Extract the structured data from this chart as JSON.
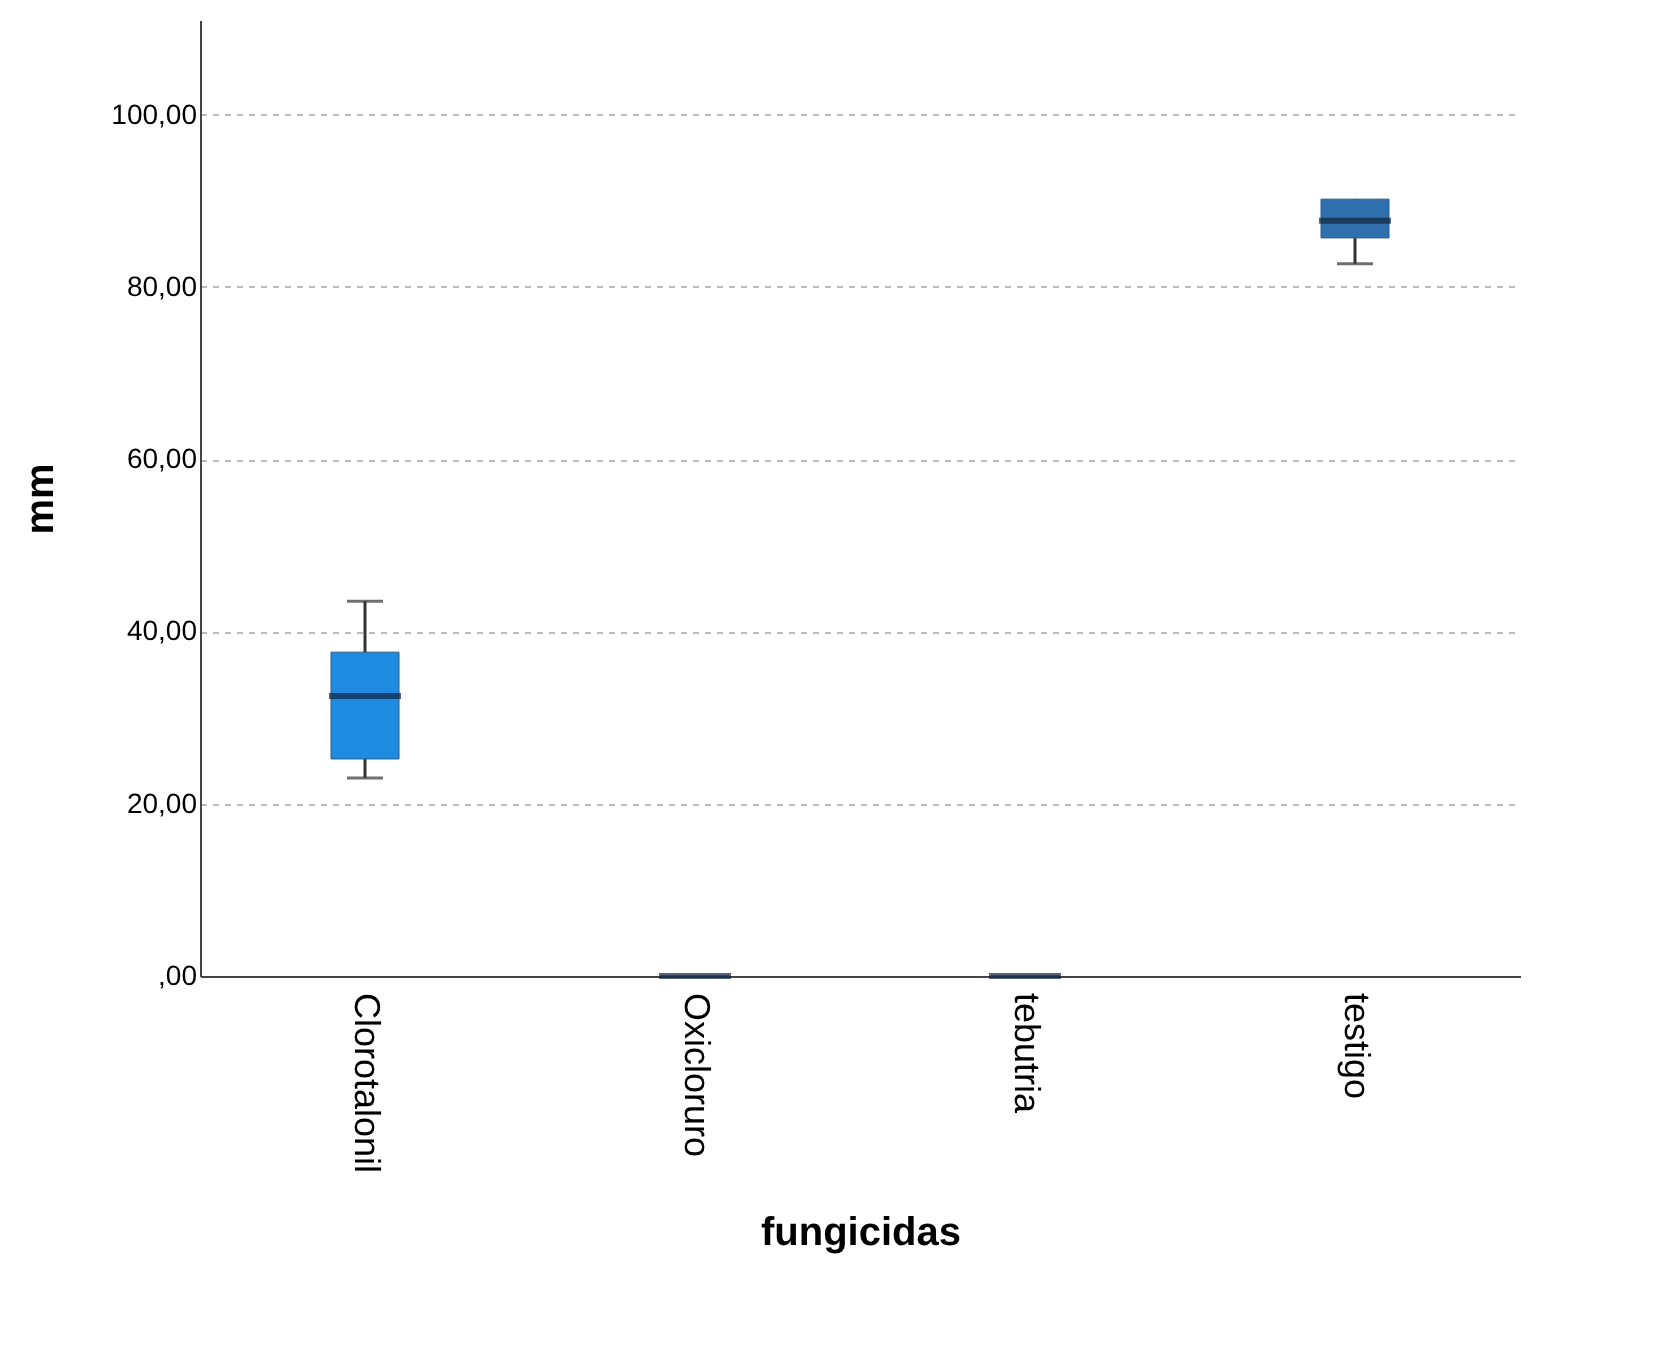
{
  "chart_data": {
    "type": "box",
    "xlabel": "fungicidas",
    "ylabel": "mm",
    "categories": [
      "Clorotalonil",
      "Oxicloruro",
      "tebutria",
      "testigo"
    ],
    "boxes": [
      {
        "low": 23,
        "q1": 25.2,
        "median": 32.5,
        "q3": 37.6,
        "high": 43.5
      },
      {
        "low": 0,
        "q1": 0,
        "median": 0,
        "q3": 0,
        "high": 0
      },
      {
        "low": 0,
        "q1": 0,
        "median": 0,
        "q3": 0,
        "high": 0
      },
      {
        "low": 82.7,
        "q1": 85.7,
        "median": 87.7,
        "q3": 90.2,
        "high": 90.2
      }
    ],
    "colors": [
      "#1e8ae0",
      "#10243d",
      "#10243d",
      "#2f6fae"
    ],
    "ylim": [
      0,
      111
    ],
    "yticks": [
      {
        "value": 0,
        "label": ",00"
      },
      {
        "value": 20,
        "label": "20,00"
      },
      {
        "value": 40,
        "label": "40,00"
      },
      {
        "value": 60,
        "label": "60,00"
      },
      {
        "value": 80,
        "label": "80,00"
      },
      {
        "value": 100,
        "label": "100,00"
      }
    ],
    "grid": "y"
  }
}
